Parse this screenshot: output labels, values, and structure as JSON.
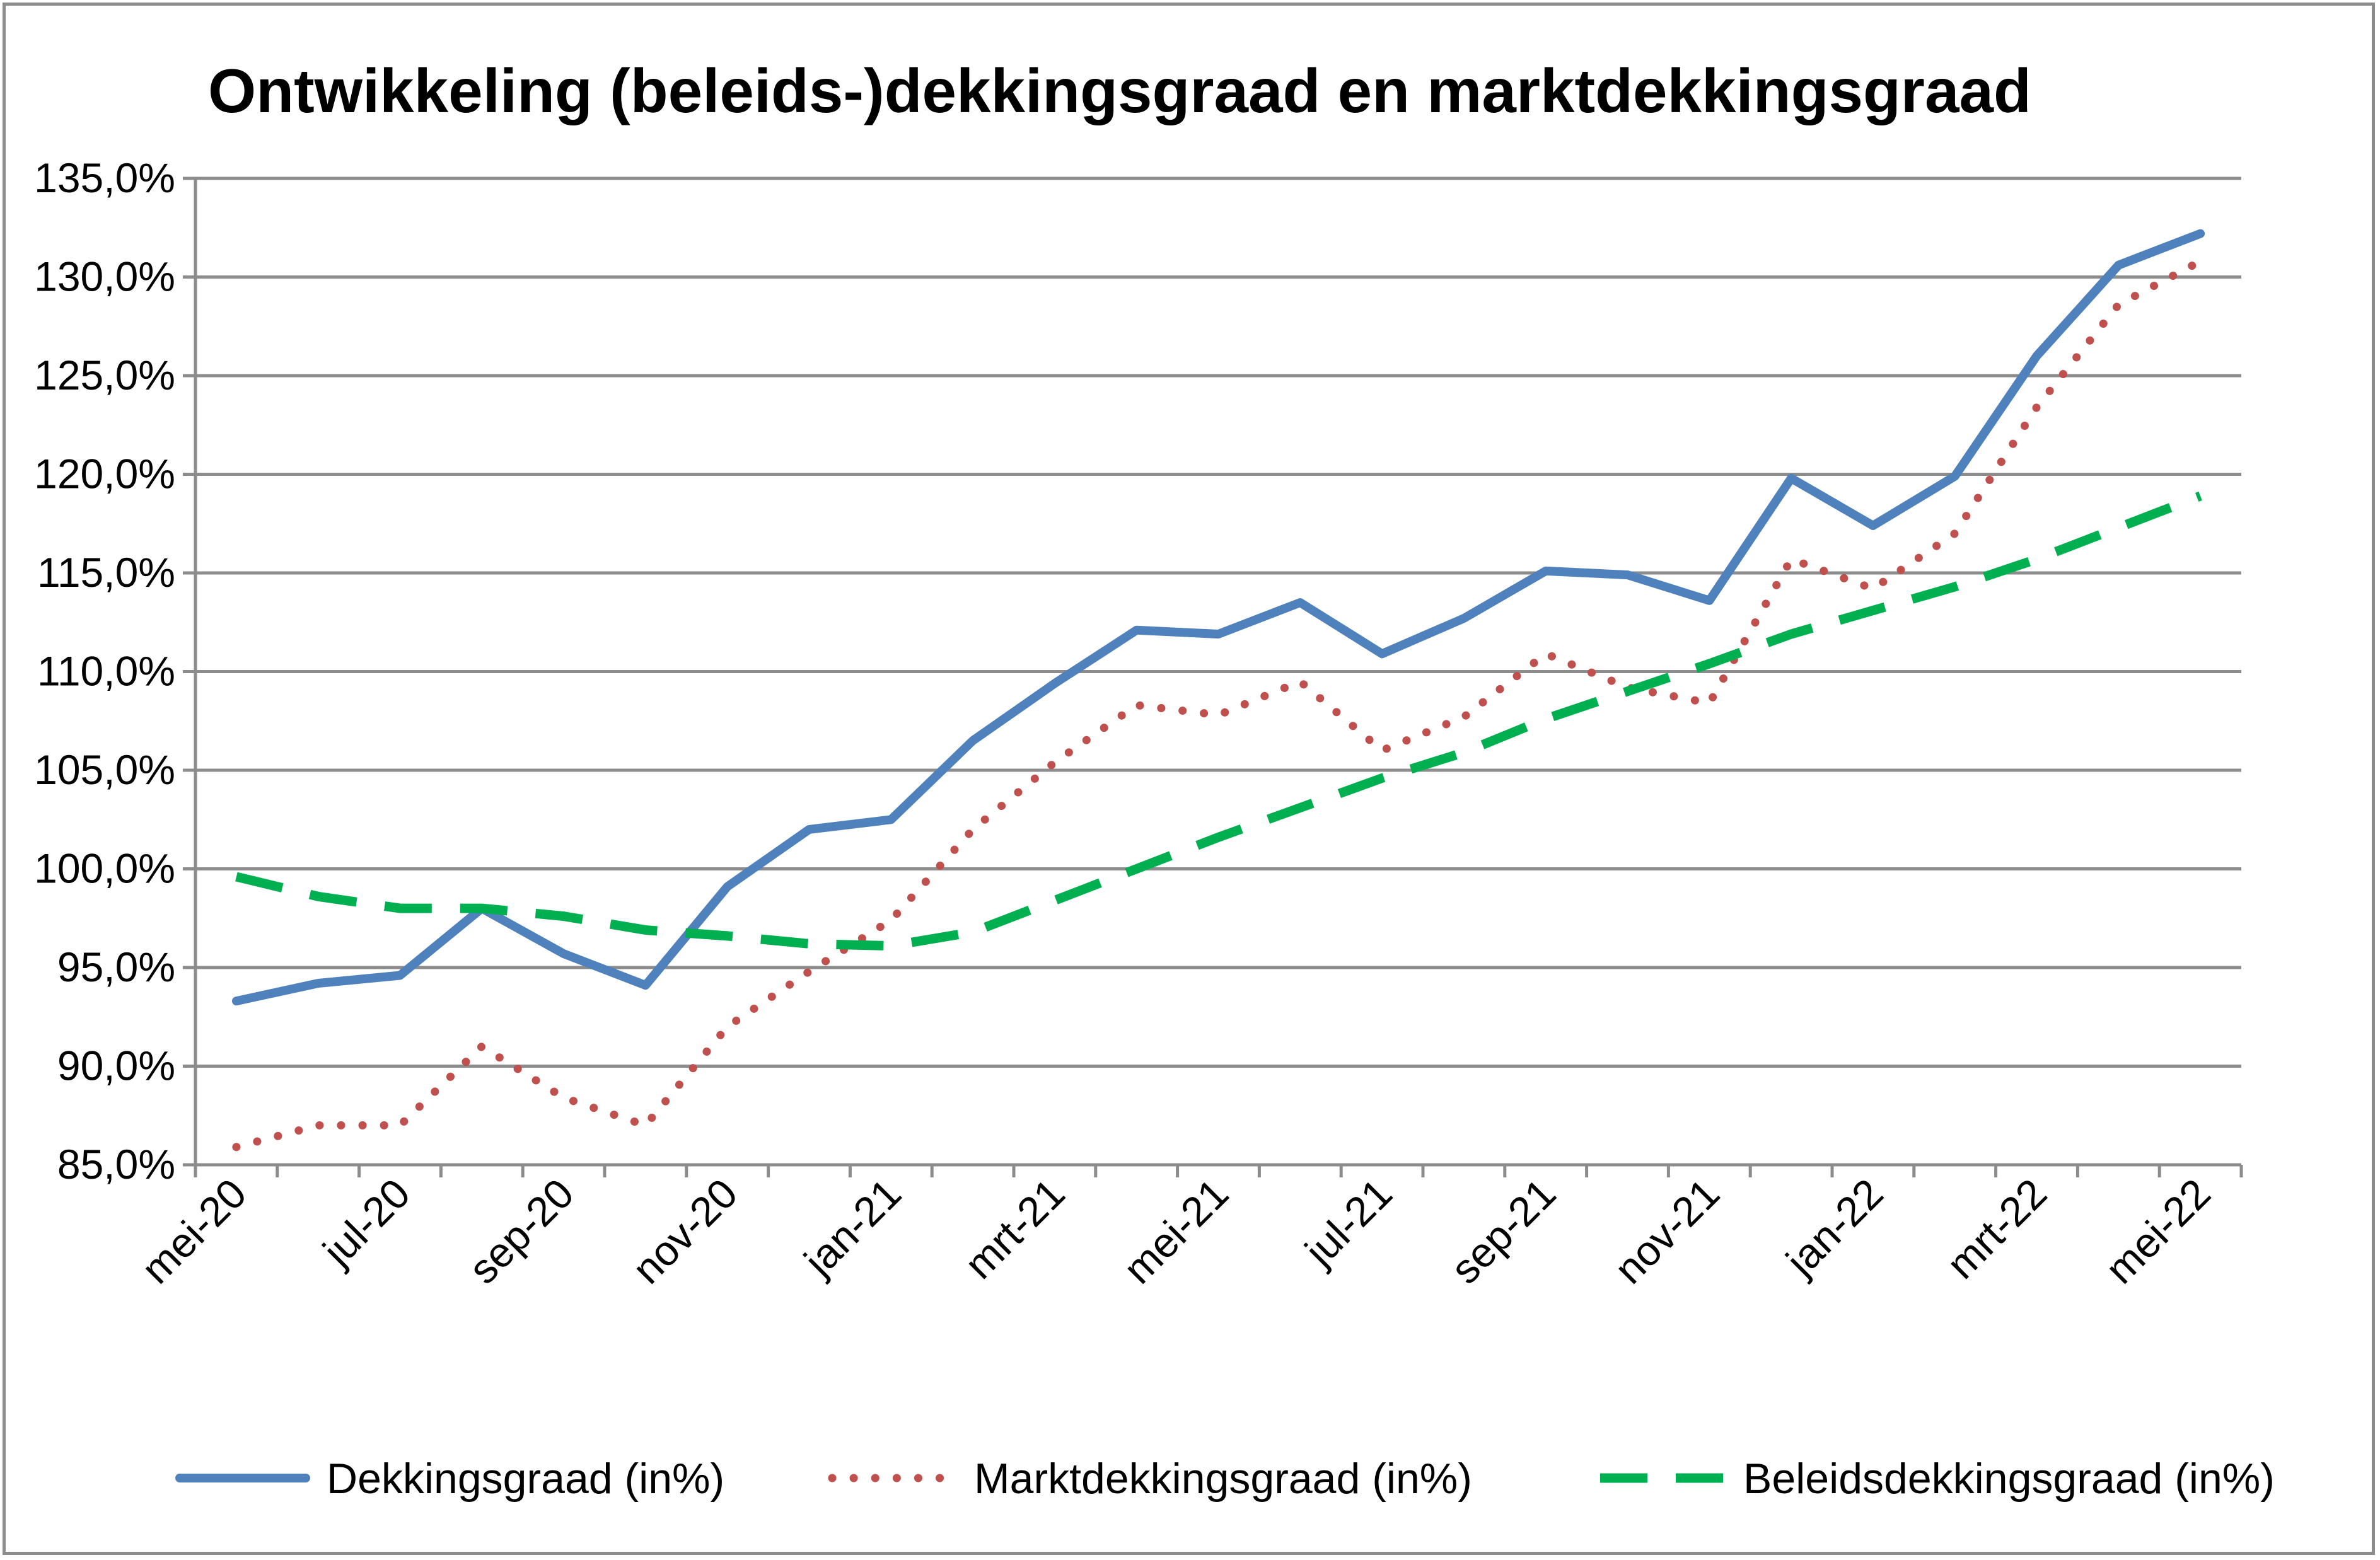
{
  "chart_data": {
    "type": "line",
    "title": "Ontwikkeling (beleids-)dekkingsgraad en marktdekkingsgraad",
    "xlabel": "",
    "ylabel": "",
    "ylim": [
      85,
      135
    ],
    "y_tick_values": [
      85,
      90,
      95,
      100,
      105,
      110,
      115,
      120,
      125,
      130,
      135
    ],
    "y_tick_labels": [
      "85,0%",
      "90,0%",
      "95,0%",
      "100,0%",
      "105,0%",
      "110,0%",
      "115,0%",
      "120,0%",
      "125,0%",
      "130,0%",
      "135,0%"
    ],
    "x": [
      "mei-20",
      "jun-20",
      "jul-20",
      "aug-20",
      "sep-20",
      "okt-20",
      "nov-20",
      "dec-20",
      "jan-21",
      "feb-21",
      "mrt-21",
      "apr-21",
      "mei-21",
      "jun-21",
      "jul-21",
      "aug-21",
      "sep-21",
      "okt-21",
      "nov-21",
      "dec-21",
      "jan-22",
      "feb-22",
      "mrt-22",
      "apr-22",
      "mei-22"
    ],
    "x_tick_labels": [
      "mei-20",
      "",
      "jul-20",
      "",
      "sep-20",
      "",
      "nov-20",
      "",
      "jan-21",
      "",
      "mrt-21",
      "",
      "mei-21",
      "",
      "jul-21",
      "",
      "sep-21",
      "",
      "nov-21",
      "",
      "jan-22",
      "",
      "mrt-22",
      "",
      "mei-22"
    ],
    "grid": true,
    "legend_placement": "bottom",
    "series": [
      {
        "name": "Dekkingsgraad (in%)",
        "color": "#4f81bd",
        "style": "solid",
        "values": [
          93.3,
          94.2,
          94.6,
          98.0,
          95.7,
          94.1,
          99.1,
          102.0,
          102.5,
          106.5,
          109.4,
          112.1,
          111.9,
          113.5,
          110.9,
          112.7,
          115.1,
          114.9,
          113.6,
          119.8,
          117.4,
          119.9,
          126.0,
          130.6,
          132.2
        ]
      },
      {
        "name": "Marktdekkingsgraad (in%)",
        "color": "#c0504d",
        "style": "dotted",
        "values": [
          85.9,
          87.0,
          87.0,
          91.0,
          88.4,
          87.0,
          92.0,
          94.8,
          97.4,
          102.0,
          105.4,
          108.3,
          107.8,
          109.5,
          106.0,
          107.7,
          110.9,
          109.2,
          108.4,
          115.7,
          114.2,
          117.0,
          123.4,
          128.6,
          130.8
        ]
      },
      {
        "name": "Beleidsdekkingsgraad (in%)",
        "color": "#00b050",
        "style": "dashed",
        "values": [
          99.6,
          98.6,
          98.0,
          98.0,
          97.6,
          96.9,
          96.6,
          96.2,
          96.1,
          96.8,
          98.4,
          100.0,
          101.6,
          103.1,
          104.6,
          105.9,
          107.6,
          109.0,
          110.4,
          111.9,
          113.1,
          114.3,
          115.7,
          117.3,
          118.9
        ]
      }
    ]
  }
}
